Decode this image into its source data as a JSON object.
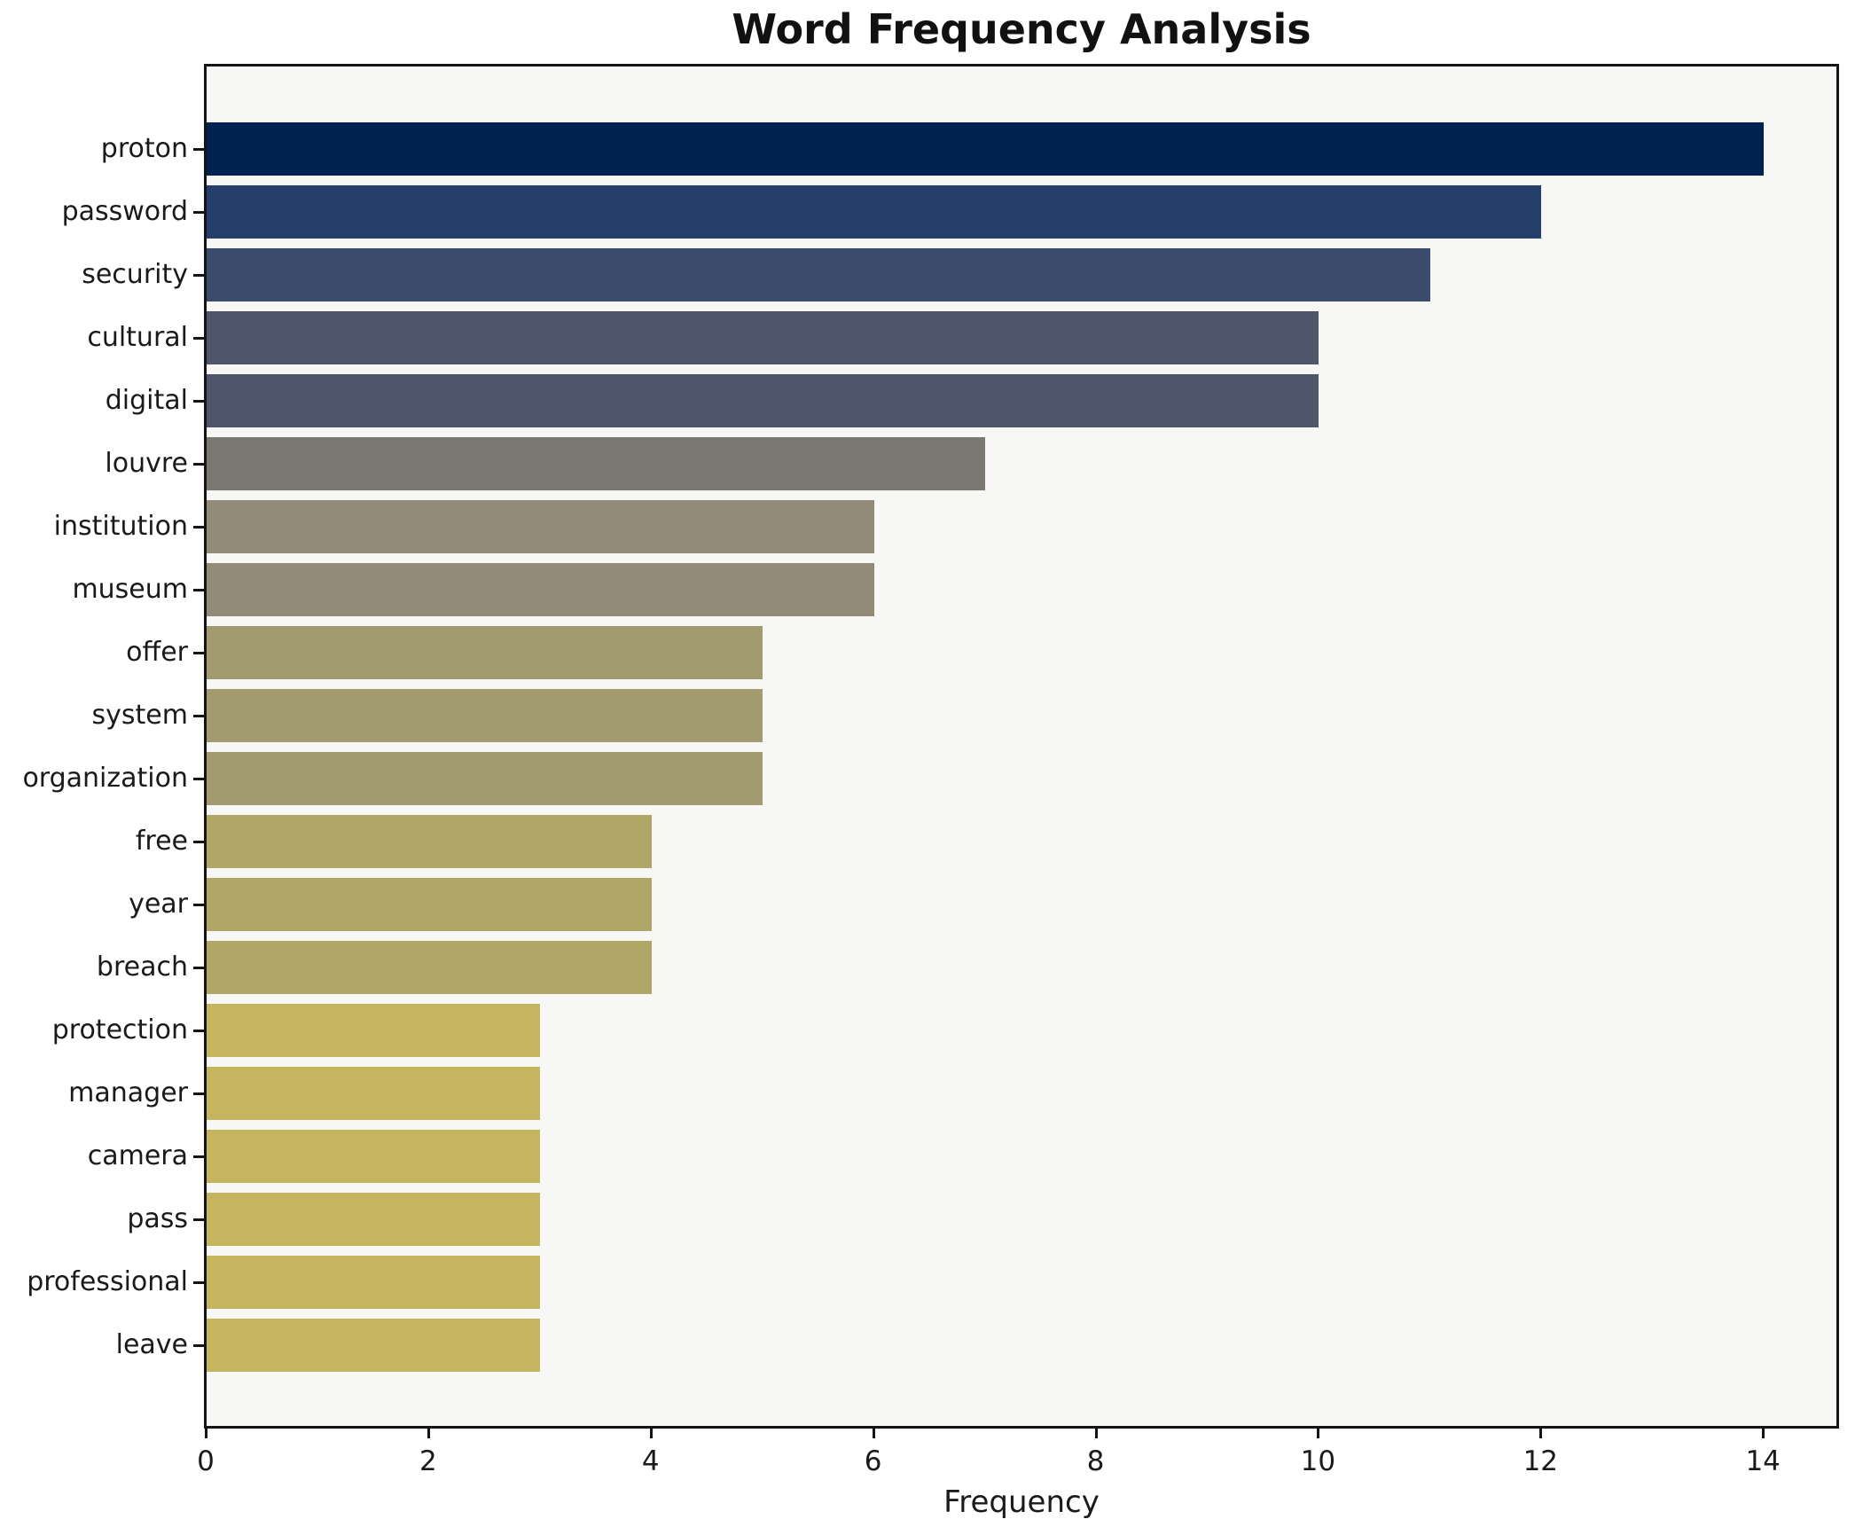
{
  "title": "Word Frequency Analysis",
  "chart_data": {
    "type": "bar",
    "orientation": "horizontal",
    "title": "Word Frequency Analysis",
    "xlabel": "Frequency",
    "ylabel": "",
    "categories": [
      "proton",
      "password",
      "security",
      "cultural",
      "digital",
      "louvre",
      "institution",
      "museum",
      "offer",
      "system",
      "organization",
      "free",
      "year",
      "breach",
      "protection",
      "manager",
      "camera",
      "pass",
      "professional",
      "leave"
    ],
    "values": [
      14,
      12,
      11,
      10,
      10,
      7,
      6,
      6,
      5,
      5,
      5,
      4,
      4,
      4,
      3,
      3,
      3,
      3,
      3,
      3
    ],
    "bar_colors": [
      "#00224e",
      "#253e6b",
      "#3c4c6c",
      "#4f566c",
      "#4f566c",
      "#7a7870",
      "#918b77",
      "#918b77",
      "#a29b6f",
      "#a29b6f",
      "#a29b6f",
      "#b0a665",
      "#b0a665",
      "#b0a665",
      "#c5b55e",
      "#c5b55e",
      "#c5b55e",
      "#c5b55e",
      "#c5b55e",
      "#c5b55e"
    ],
    "xticks": [
      0,
      2,
      4,
      6,
      8,
      10,
      12,
      14
    ],
    "xlim": [
      0,
      14.7
    ],
    "grid": false,
    "legend": false,
    "plot_bg": "#f7f7f5",
    "spine_color": "#141414",
    "colormap": "cividis"
  }
}
